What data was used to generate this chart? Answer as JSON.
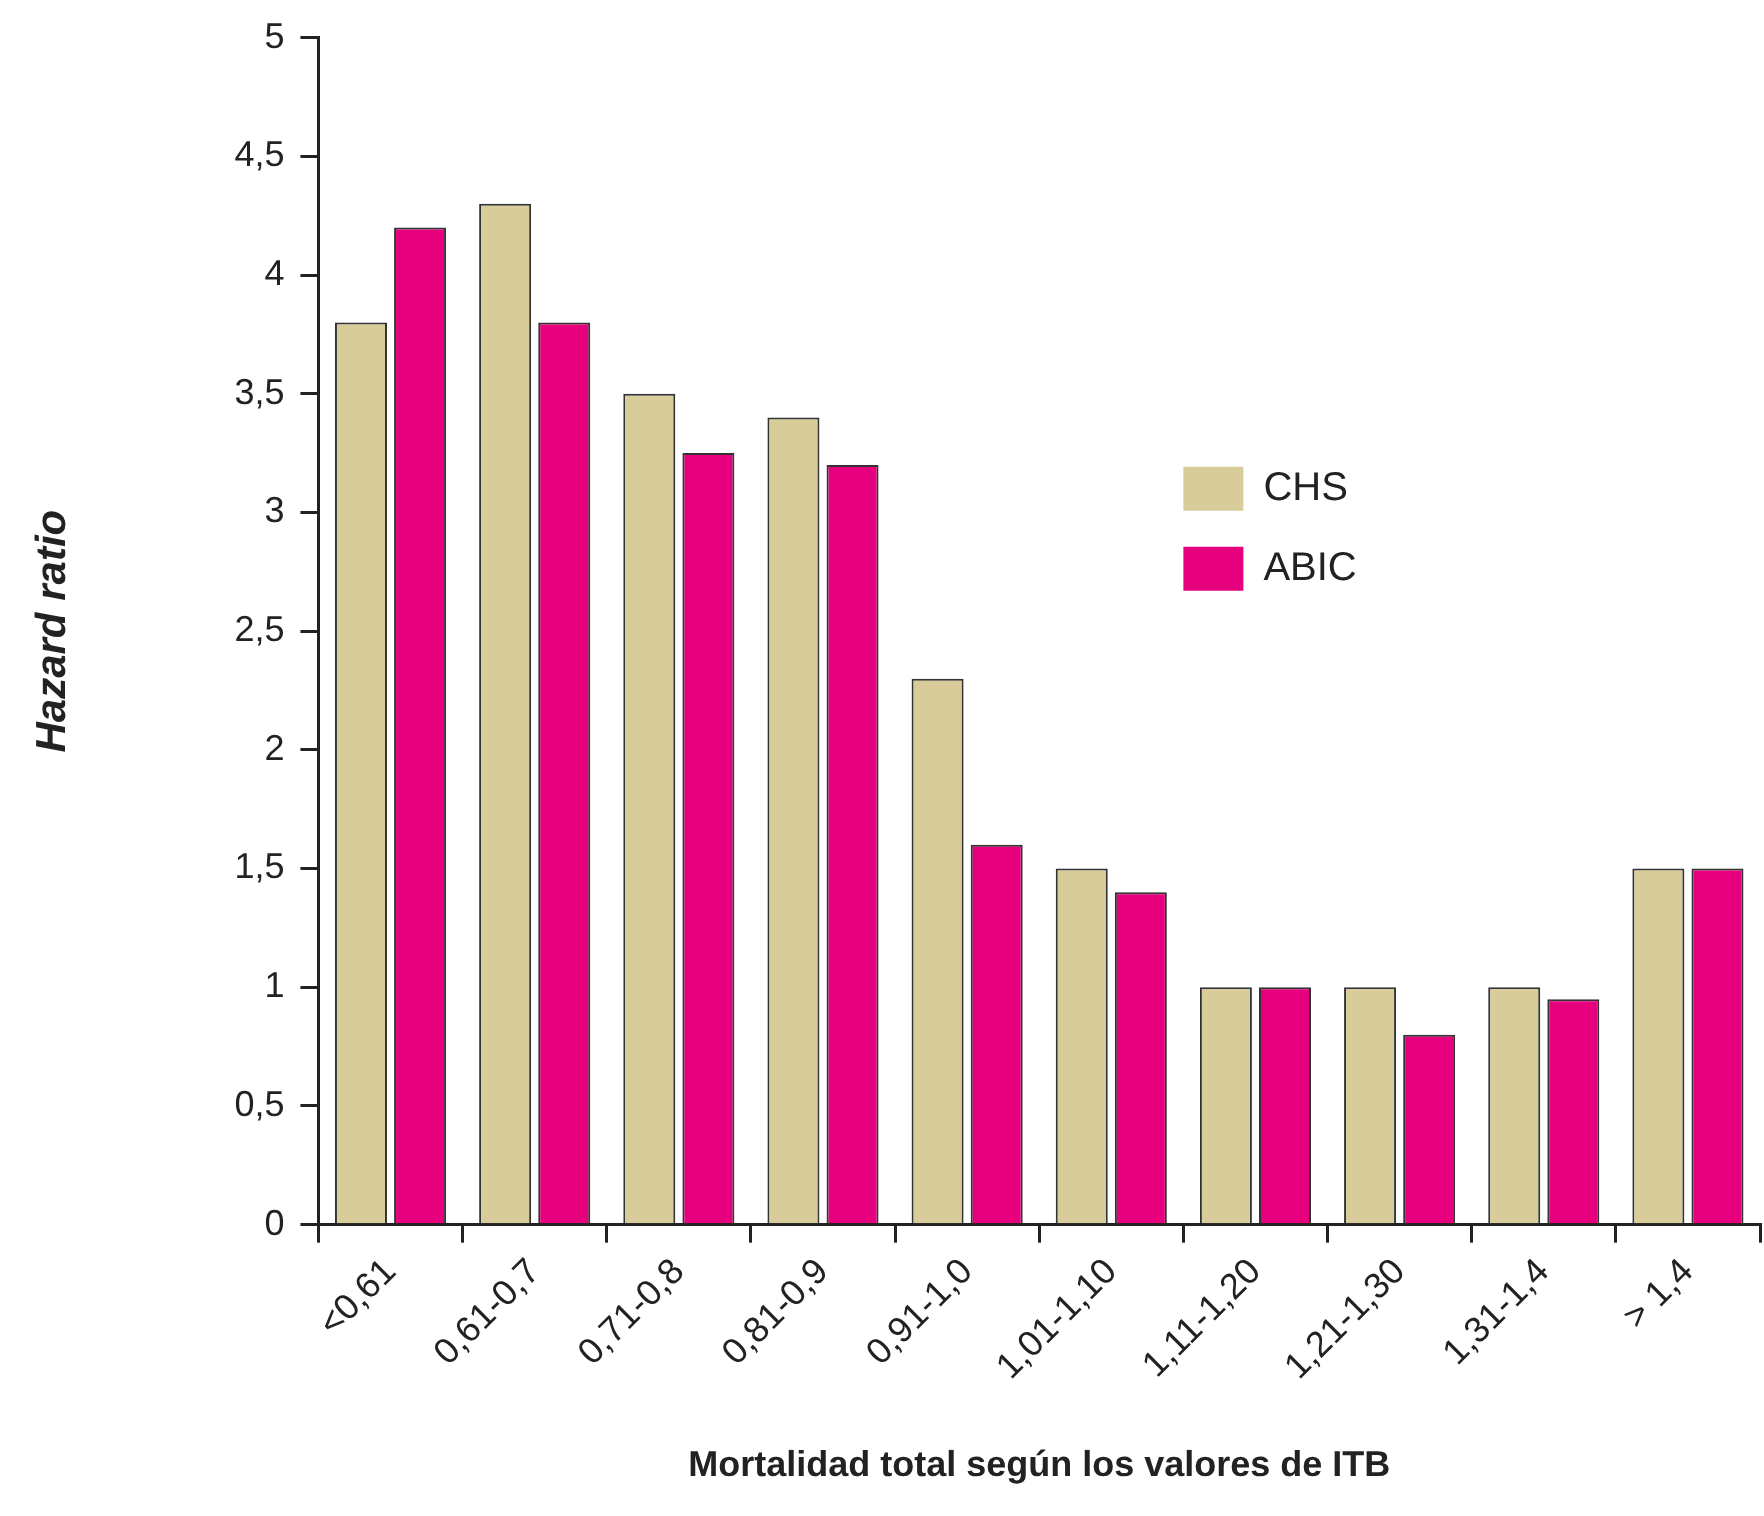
{
  "chart_data": {
    "type": "bar",
    "xlabel": "Mortalidad total según los valores de ITB",
    "ylabel": "Hazard ratio",
    "categories": [
      "<0,61",
      "0,61-0,7",
      "0,71-0,8",
      "0,81-0,9",
      "0,91-1,0",
      "1,01-1,10",
      "1,11-1,20",
      "1,21-1,30",
      "1,31-1,4",
      "> 1,4"
    ],
    "series": [
      {
        "name": "CHS",
        "color": "#d9cc9b",
        "values": [
          3.8,
          4.3,
          3.5,
          3.4,
          2.3,
          1.5,
          1.0,
          1.0,
          1.0,
          1.5
        ]
      },
      {
        "name": "ABIC",
        "color": "#e6007e",
        "values": [
          4.2,
          3.8,
          3.25,
          3.2,
          1.6,
          1.4,
          1.0,
          0.8,
          0.95,
          1.5
        ]
      }
    ],
    "ylim": [
      0,
      5
    ],
    "yticks": [
      0,
      {
        "value": 0.5,
        "label": "0,5"
      },
      1,
      {
        "value": 1.5,
        "label": "1,5"
      },
      2,
      {
        "value": 2.5,
        "label": "2,5"
      },
      3,
      {
        "value": 3.5,
        "label": "3,5"
      },
      4,
      {
        "value": 4.5,
        "label": "4,5"
      },
      5
    ],
    "grid": false,
    "legend": "right"
  }
}
